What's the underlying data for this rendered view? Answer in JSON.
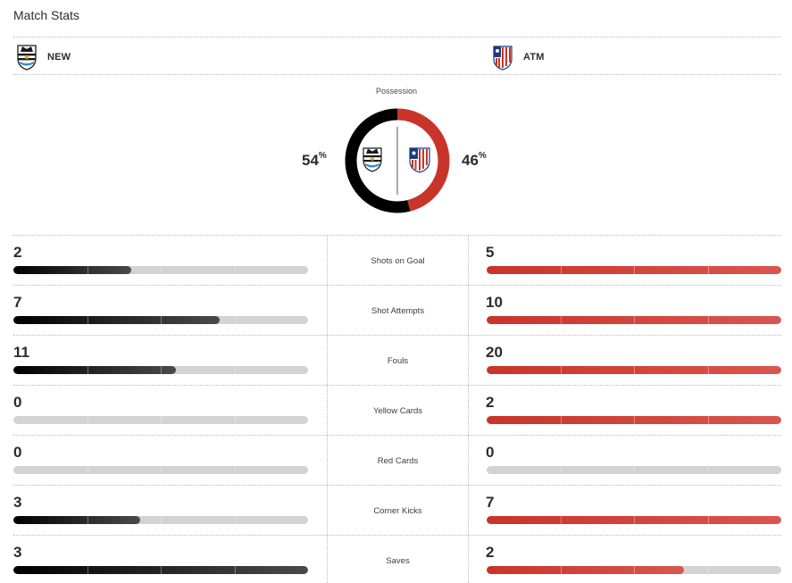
{
  "header": {
    "title": "Match Stats"
  },
  "teams": {
    "home": {
      "abbr": "NEW",
      "color": "#000000",
      "logo_icon": "newcastle-crest-icon"
    },
    "away": {
      "abbr": "ATM",
      "color": "#c8342a",
      "logo_icon": "atletico-crest-icon"
    }
  },
  "possession": {
    "label": "Possession",
    "home_pct": "54",
    "away_pct": "46",
    "pct_sign": "%"
  },
  "stats": [
    {
      "label": "Shots on Goal",
      "home": "2",
      "away": "5",
      "home_fill": 0.4,
      "away_fill": 1.0
    },
    {
      "label": "Shot Attempts",
      "home": "7",
      "away": "10",
      "home_fill": 0.7,
      "away_fill": 1.0
    },
    {
      "label": "Fouls",
      "home": "11",
      "away": "20",
      "home_fill": 0.55,
      "away_fill": 1.0
    },
    {
      "label": "Yellow Cards",
      "home": "0",
      "away": "2",
      "home_fill": 0.0,
      "away_fill": 1.0
    },
    {
      "label": "Red Cards",
      "home": "0",
      "away": "0",
      "home_fill": 0.0,
      "away_fill": 0.0
    },
    {
      "label": "Corner Kicks",
      "home": "3",
      "away": "7",
      "home_fill": 0.43,
      "away_fill": 1.0
    },
    {
      "label": "Saves",
      "home": "3",
      "away": "2",
      "home_fill": 1.0,
      "away_fill": 0.67
    }
  ]
}
